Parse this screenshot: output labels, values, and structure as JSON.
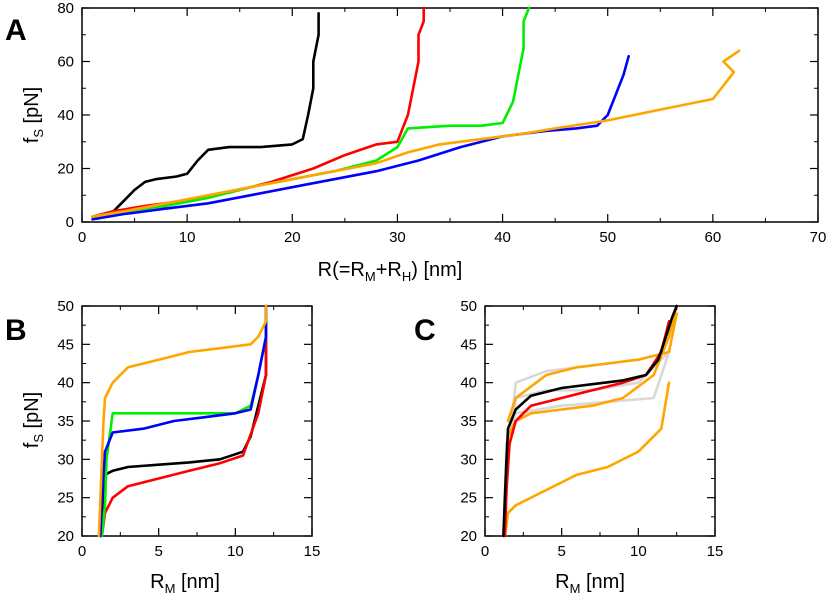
{
  "figure": {
    "panel_letters": [
      "A",
      "B",
      "C"
    ]
  },
  "chart_data": [
    {
      "panel": "A",
      "type": "line",
      "xlim": [
        0,
        70
      ],
      "ylim": [
        0,
        80
      ],
      "xticks": [
        0,
        10,
        20,
        30,
        40,
        50,
        60,
        70
      ],
      "yticks": [
        0,
        20,
        40,
        60,
        80
      ],
      "xlabel": "R(=R_M+R_H) [nm]",
      "ylabel": "f_S [pN]",
      "grid": false,
      "series": [
        {
          "color": "#000000",
          "x": [
            1,
            3,
            4,
            5,
            6,
            7,
            9,
            10,
            11,
            12,
            14,
            17,
            20,
            21,
            21.5,
            22,
            22,
            22.5,
            22.5
          ],
          "y": [
            2,
            4,
            8,
            12,
            15,
            16,
            17,
            18,
            23,
            27,
            28,
            28,
            29,
            31,
            40,
            50,
            60,
            70,
            78
          ]
        },
        {
          "color": "#ff0000",
          "x": [
            1,
            3,
            6,
            10,
            14,
            18,
            22,
            25,
            28,
            30,
            31,
            31.5,
            32,
            32,
            32.5,
            32.5
          ],
          "y": [
            2,
            4,
            6,
            8,
            11,
            15,
            20,
            25,
            29,
            30,
            40,
            50,
            60,
            70,
            75,
            80
          ]
        },
        {
          "color": "#00ee00",
          "x": [
            1,
            4,
            8,
            12,
            16,
            20,
            24,
            28,
            30,
            31,
            35,
            38,
            40,
            41,
            41.5,
            42,
            42,
            42.5
          ],
          "y": [
            2,
            4,
            6,
            9,
            13,
            16,
            19,
            23,
            28,
            35,
            36,
            36,
            37,
            45,
            55,
            65,
            75,
            80
          ]
        },
        {
          "color": "#0000ff",
          "x": [
            1,
            4,
            8,
            12,
            16,
            20,
            24,
            28,
            32,
            36,
            40,
            44,
            47,
            49,
            50,
            50.5,
            51,
            51.5,
            52
          ],
          "y": [
            1,
            3,
            5,
            7,
            10,
            13,
            16,
            19,
            23,
            28,
            32,
            34,
            35,
            36,
            40,
            45,
            50,
            55,
            62
          ]
        },
        {
          "color": "#ffa500",
          "x": [
            1,
            4,
            8,
            12,
            16,
            20,
            24,
            28,
            31,
            34,
            38,
            40,
            42,
            45,
            50,
            55,
            60,
            62,
            61,
            62.5
          ],
          "y": [
            2,
            4,
            7,
            10,
            13,
            16,
            19,
            22,
            26,
            29,
            31,
            32,
            33,
            35,
            38,
            42,
            46,
            56,
            60,
            64
          ]
        }
      ]
    },
    {
      "panel": "B",
      "type": "line",
      "xlim": [
        0,
        15
      ],
      "ylim": [
        20,
        50
      ],
      "xticks": [
        0,
        5,
        10,
        15
      ],
      "yticks": [
        20,
        25,
        30,
        35,
        40,
        45,
        50
      ],
      "xlabel": "R_M [nm]",
      "ylabel": "f_S [pN]",
      "grid": false,
      "series": [
        {
          "color": "#000000",
          "x": [
            1.2,
            1.3,
            1.4,
            1.5,
            2,
            3,
            5,
            7,
            9,
            10.5,
            11,
            11.5,
            12,
            12,
            12
          ],
          "y": [
            20,
            23,
            26,
            28,
            28.5,
            29,
            29.3,
            29.6,
            30,
            31,
            33,
            37,
            41,
            46,
            50
          ]
        },
        {
          "color": "#ff0000",
          "x": [
            1.3,
            1.5,
            2,
            3,
            5,
            7,
            9,
            10.5,
            11.5,
            12,
            12,
            12
          ],
          "y": [
            20,
            23,
            25,
            26.5,
            27.5,
            28.5,
            29.5,
            30.5,
            36,
            41,
            46,
            50
          ]
        },
        {
          "color": "#00ee00",
          "x": [
            1.3,
            1.5,
            1.6,
            2,
            4,
            6,
            8,
            10,
            11,
            11.5,
            12,
            12
          ],
          "y": [
            20,
            24,
            30,
            36,
            36,
            36,
            36,
            36,
            37,
            41,
            46,
            50
          ]
        },
        {
          "color": "#0000ff",
          "x": [
            1.2,
            1.3,
            1.5,
            2,
            4,
            6,
            8,
            10,
            11,
            11.5,
            12,
            12
          ],
          "y": [
            20,
            25,
            31,
            33.5,
            34,
            35,
            35.5,
            36,
            36.5,
            41,
            46,
            50
          ]
        },
        {
          "color": "#ffa500",
          "x": [
            1.1,
            1.2,
            1.3,
            1.4,
            1.5,
            2,
            3,
            5,
            7,
            9,
            11,
            11.5,
            12,
            12
          ],
          "y": [
            20,
            25,
            30,
            35,
            38,
            40,
            42,
            43,
            44,
            44.5,
            45,
            46,
            48,
            50
          ]
        }
      ]
    },
    {
      "panel": "C",
      "type": "line",
      "xlim": [
        0,
        15
      ],
      "ylim": [
        20,
        50
      ],
      "xticks": [
        0,
        5,
        10,
        15
      ],
      "yticks": [
        20,
        25,
        30,
        35,
        40,
        45,
        50
      ],
      "xlabel": "R_M [nm]",
      "ylabel": "",
      "grid": false,
      "series": [
        {
          "color": "#d8d8d8",
          "x": [
            1.2,
            1.5,
            2,
            4,
            6,
            8,
            10,
            12
          ],
          "y": [
            20,
            30,
            40,
            41.5,
            42,
            42.5,
            43,
            44
          ]
        },
        {
          "color": "#d8d8d8",
          "x": [
            1.2,
            1.5,
            2,
            4,
            7,
            10,
            12
          ],
          "y": [
            20,
            30,
            38,
            39,
            39,
            40,
            44
          ]
        },
        {
          "color": "#d8d8d8",
          "x": [
            1.2,
            1.4,
            2,
            5,
            8,
            11,
            12
          ],
          "y": [
            20,
            32,
            36,
            37,
            37.5,
            38,
            44
          ]
        },
        {
          "color": "#ffa500",
          "x": [
            1.3,
            1.5,
            2,
            3,
            5,
            7,
            9,
            11,
            12,
            12.5
          ],
          "y": [
            20,
            33,
            35,
            36,
            36.5,
            37,
            38,
            41,
            46,
            50
          ]
        },
        {
          "color": "#ffa500",
          "x": [
            1.3,
            1.5,
            2,
            4,
            6,
            8,
            10,
            11.5,
            12
          ],
          "y": [
            20,
            23,
            24,
            26,
            28,
            29,
            31,
            34,
            40
          ]
        },
        {
          "color": "#ffa500",
          "x": [
            1.5,
            2,
            4,
            6,
            8,
            10,
            12,
            12.5
          ],
          "y": [
            35,
            38,
            41,
            42,
            42.5,
            43,
            44,
            49
          ]
        },
        {
          "color": "#ff0000",
          "x": [
            1.3,
            1.4,
            1.6,
            2,
            3,
            5,
            7,
            9,
            10.5,
            11.5,
            12
          ],
          "y": [
            20,
            26,
            32,
            35,
            37,
            38,
            39,
            40,
            41,
            44,
            48
          ]
        },
        {
          "color": "#000000",
          "x": [
            1.2,
            1.3,
            1.4,
            1.5,
            2,
            3,
            5,
            7,
            9,
            10.5,
            11.3,
            11.8,
            12.2,
            12.5
          ],
          "y": [
            20,
            25,
            30,
            34,
            36.5,
            38.3,
            39.3,
            39.8,
            40.3,
            41,
            43,
            46,
            48.5,
            50
          ]
        }
      ]
    }
  ]
}
